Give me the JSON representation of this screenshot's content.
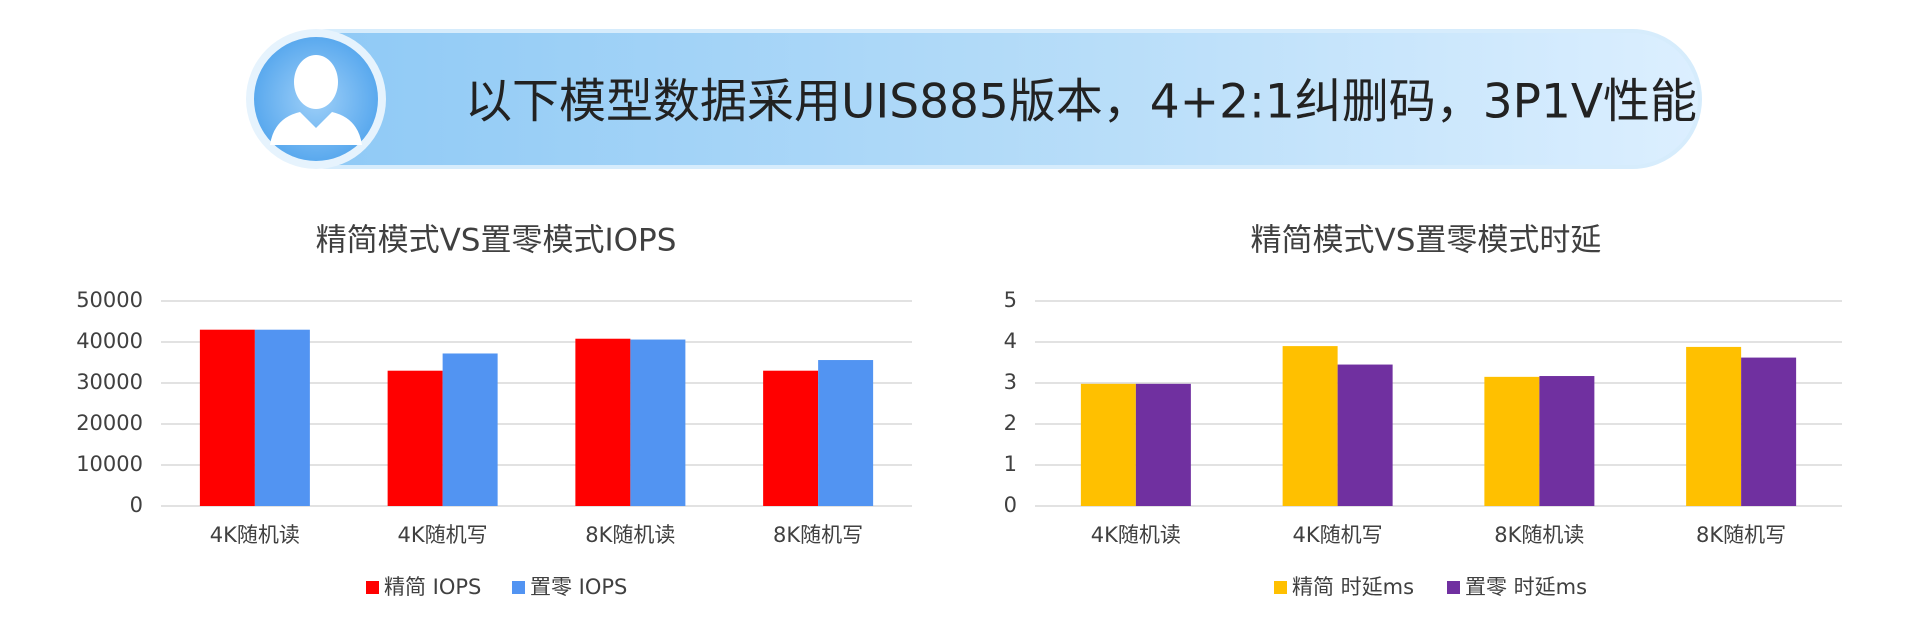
{
  "header": {
    "title": "以下模型数据采用UIS885版本，4+2:1纠删码，3P1V性能"
  },
  "chart_data": [
    {
      "type": "bar",
      "title": "精简模式VS置零模式IOPS",
      "categories": [
        "4K随机读",
        "4K随机写",
        "8K随机读",
        "8K随机写"
      ],
      "series": [
        {
          "name": "精简 IOPS",
          "color": "#ff0000",
          "values": [
            43000,
            33000,
            40800,
            33000
          ]
        },
        {
          "name": "置零 IOPS",
          "color": "#5294f2",
          "values": [
            43000,
            37200,
            40600,
            35600
          ]
        }
      ],
      "ylim": [
        0,
        50000
      ],
      "yticks": [
        0,
        10000,
        20000,
        30000,
        40000,
        50000
      ],
      "grid": true
    },
    {
      "type": "bar",
      "title": "精简模式VS置零模式时延",
      "categories": [
        "4K随机读",
        "4K随机写",
        "8K随机读",
        "8K随机写"
      ],
      "series": [
        {
          "name": "精简 时延ms",
          "color": "#ffc000",
          "values": [
            2.98,
            3.9,
            3.15,
            3.88
          ]
        },
        {
          "name": "置零 时延ms",
          "color": "#7030a0",
          "values": [
            2.98,
            3.45,
            3.17,
            3.62
          ]
        }
      ],
      "ylim": [
        0,
        5
      ],
      "yticks": [
        0,
        1,
        2,
        3,
        4,
        5
      ],
      "grid": true
    }
  ]
}
